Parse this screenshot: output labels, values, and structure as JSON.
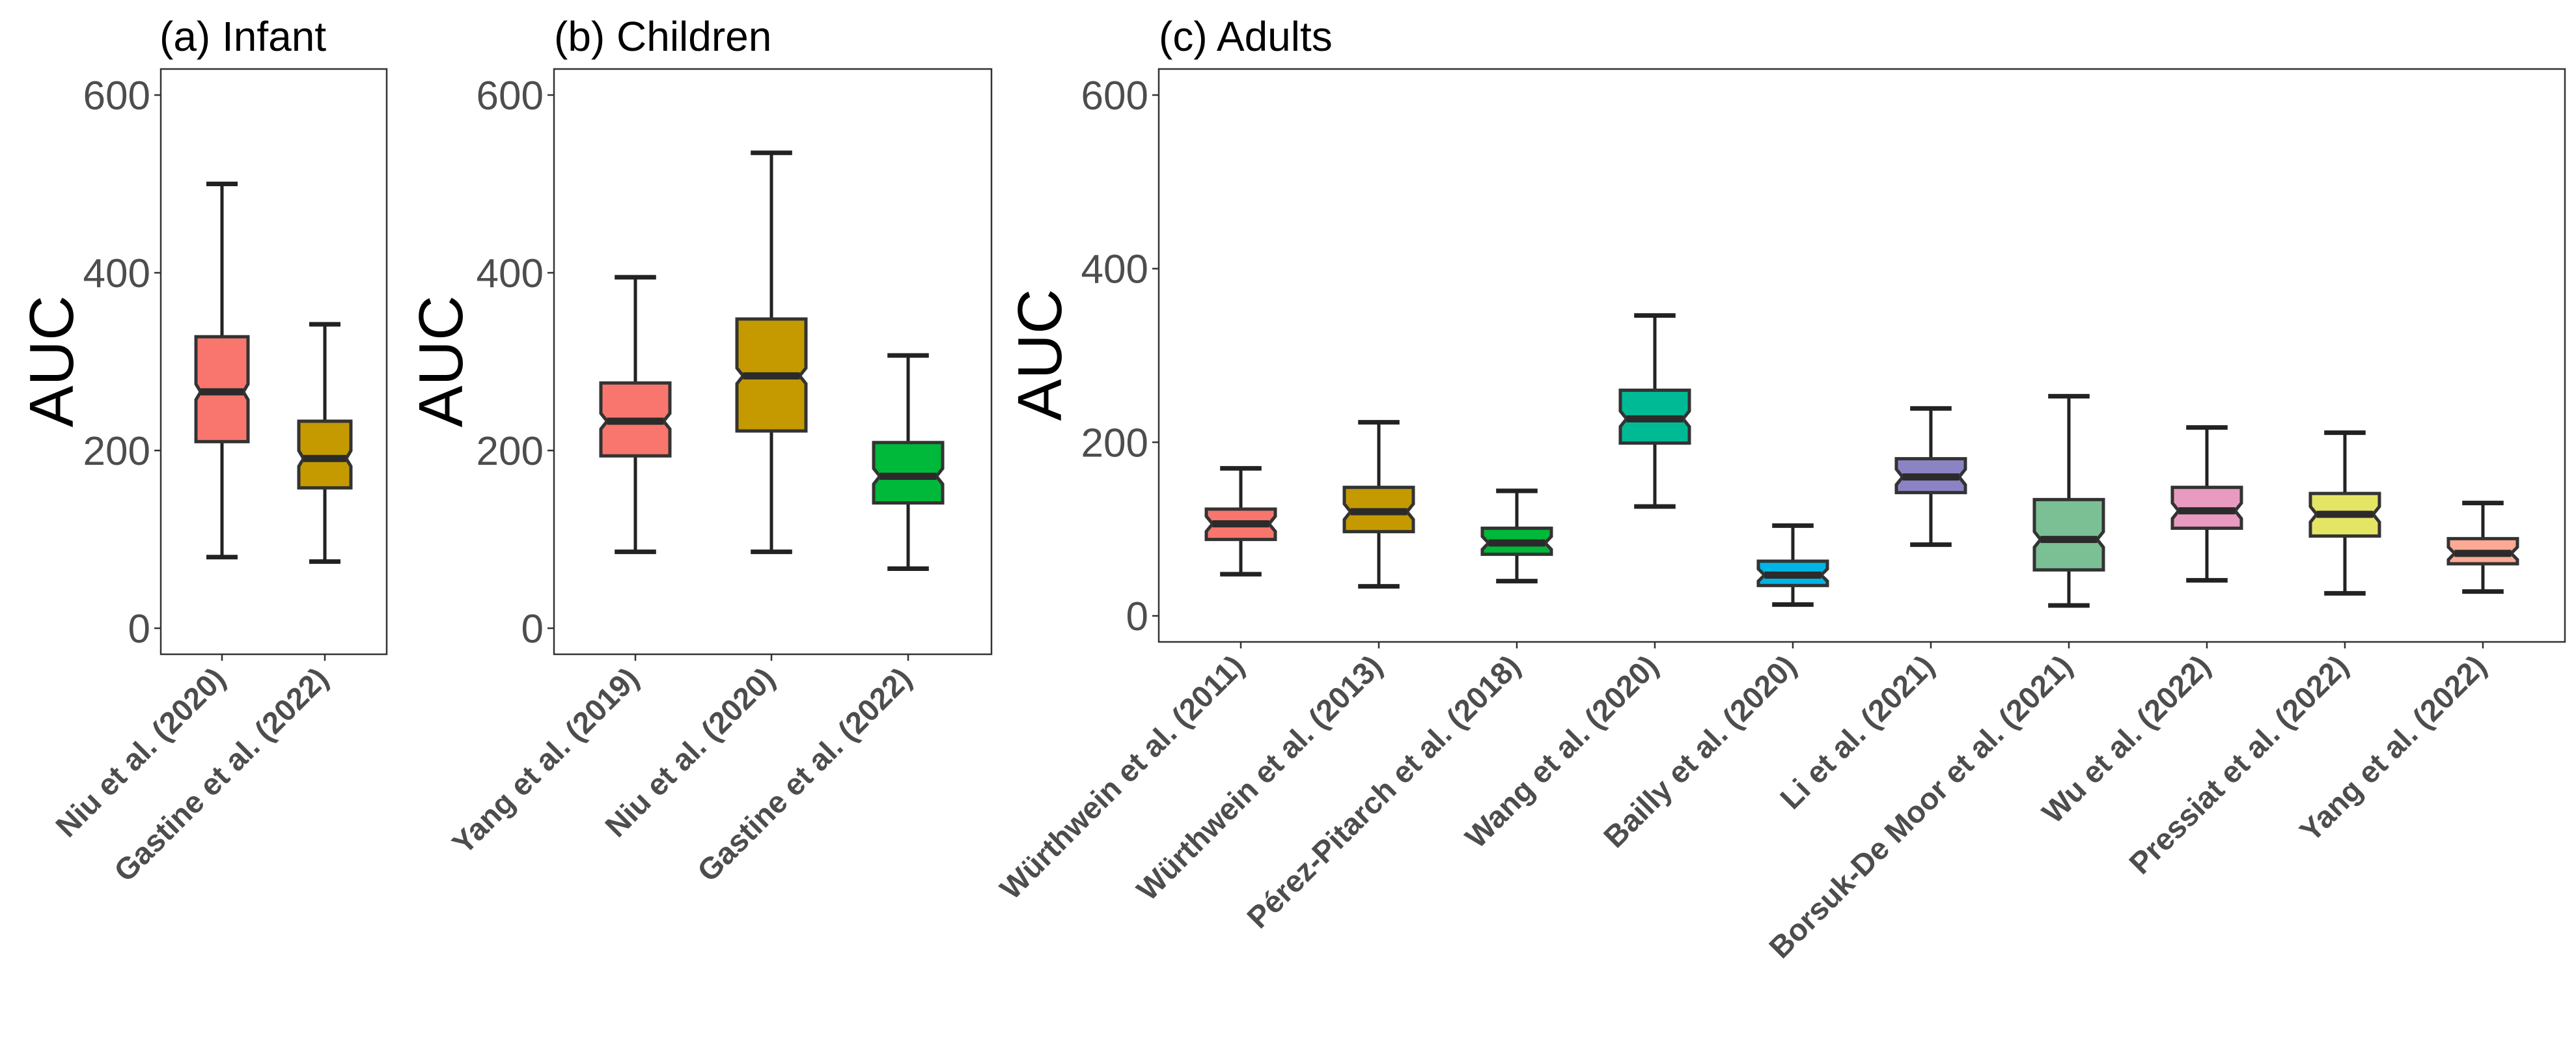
{
  "chart_data": [
    {
      "type": "box",
      "title": "(a) Infant",
      "ylabel": "AUC",
      "ylim": [
        0,
        600
      ],
      "yticks": [
        0,
        200,
        400,
        600
      ],
      "grid": false,
      "notched": true,
      "categories": [
        "Niu et al. (2020)",
        "Gastine et al. (2022)"
      ],
      "boxes": [
        {
          "min": 80,
          "q1": 210,
          "median": 266,
          "q3": 328,
          "max": 500,
          "color": "#F8766D"
        },
        {
          "min": 75,
          "q1": 158,
          "median": 191,
          "q3": 233,
          "max": 342,
          "color": "#C49A00"
        }
      ]
    },
    {
      "type": "box",
      "title": "(b) Children",
      "ylabel": "AUC",
      "ylim": [
        0,
        600
      ],
      "yticks": [
        0,
        200,
        400,
        600
      ],
      "grid": false,
      "notched": true,
      "categories": [
        "Yang et al. (2019)",
        "Niu et al. (2020)",
        "Gastine et al. (2022)"
      ],
      "boxes": [
        {
          "min": 86,
          "q1": 194,
          "median": 233,
          "q3": 276,
          "max": 395,
          "color": "#F8766D"
        },
        {
          "min": 86,
          "q1": 222,
          "median": 284,
          "q3": 348,
          "max": 535,
          "color": "#C49A00"
        },
        {
          "min": 67,
          "q1": 141,
          "median": 171,
          "q3": 209,
          "max": 307,
          "color": "#00B83A"
        }
      ]
    },
    {
      "type": "box",
      "title": "(c) Adults",
      "ylabel": "AUC",
      "ylim": [
        0,
        600
      ],
      "yticks": [
        0,
        200,
        400,
        600
      ],
      "grid": false,
      "notched": true,
      "categories": [
        "Würthwein et al. (2011)",
        "Würthwein et al. (2013)",
        "Pérez-Pitarch et al. (2018)",
        "Wang et al. (2020)",
        "Bailly et al. (2020)",
        "Li et al. (2021)",
        "Borsuk-De Moor et al. (2021)",
        "Wu et al. (2022)",
        "Pressiat et al. (2022)",
        "Yang et al. (2022)"
      ],
      "boxes": [
        {
          "min": 48,
          "q1": 88,
          "median": 106,
          "q3": 123,
          "max": 170,
          "color": "#F8766D"
        },
        {
          "min": 34,
          "q1": 97,
          "median": 120,
          "q3": 148,
          "max": 223,
          "color": "#C49A00"
        },
        {
          "min": 40,
          "q1": 71,
          "median": 84,
          "q3": 101,
          "max": 144,
          "color": "#00B83A"
        },
        {
          "min": 126,
          "q1": 199,
          "median": 227,
          "q3": 260,
          "max": 346,
          "color": "#00BA96"
        },
        {
          "min": 13,
          "q1": 35,
          "median": 47,
          "q3": 63,
          "max": 104,
          "color": "#00B4E6"
        },
        {
          "min": 82,
          "q1": 142,
          "median": 160,
          "q3": 181,
          "max": 239,
          "color": "#8B84C4"
        },
        {
          "min": 12,
          "q1": 53,
          "median": 88,
          "q3": 134,
          "max": 253,
          "color": "#7BBF94"
        },
        {
          "min": 41,
          "q1": 101,
          "median": 121,
          "q3": 148,
          "max": 217,
          "color": "#E89BBE"
        },
        {
          "min": 26,
          "q1": 92,
          "median": 117,
          "q3": 141,
          "max": 211,
          "color": "#E5E565"
        },
        {
          "min": 28,
          "q1": 60,
          "median": 72,
          "q3": 89,
          "max": 130,
          "color": "#FCAA95"
        }
      ]
    }
  ]
}
